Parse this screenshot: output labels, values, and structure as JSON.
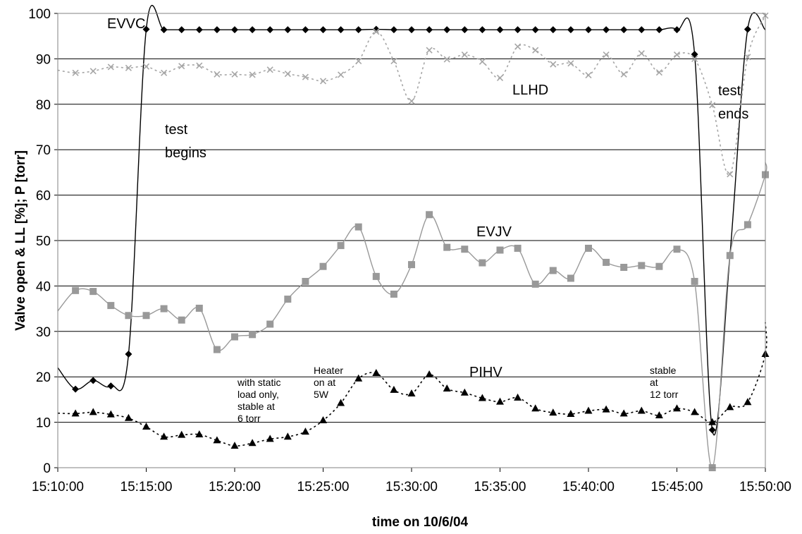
{
  "chart_data": {
    "type": "line",
    "xlabel": "time on 10/6/04",
    "ylabel": "Valve open & LL [%]; P [torr]",
    "ylim": [
      0,
      100
    ],
    "yticks": [
      0,
      10,
      20,
      30,
      40,
      50,
      60,
      70,
      80,
      90,
      100
    ],
    "xticks": [
      "15:10:00",
      "15:15:00",
      "15:20:00",
      "15:25:00",
      "15:30:00",
      "15:35:00",
      "15:40:00",
      "15:45:00",
      "15:50:00"
    ],
    "xlim": [
      "15:10:00",
      "15:50:00"
    ],
    "grid": "horizontal",
    "legend": "none",
    "series": [
      {
        "name": "EVVC",
        "color": "#000000",
        "line_style": "solid",
        "marker": "diamond",
        "x": [
          "15:10:00",
          "15:11:00",
          "15:12:00",
          "15:13:00",
          "15:14:00",
          "15:15:00",
          "15:16:00",
          "15:17:00",
          "15:18:00",
          "15:19:00",
          "15:20:00",
          "15:21:00",
          "15:22:00",
          "15:23:00",
          "15:24:00",
          "15:25:00",
          "15:26:00",
          "15:27:00",
          "15:28:00",
          "15:29:00",
          "15:30:00",
          "15:31:00",
          "15:32:00",
          "15:33:00",
          "15:34:00",
          "15:35:00",
          "15:36:00",
          "15:37:00",
          "15:38:00",
          "15:39:00",
          "15:40:00",
          "15:41:00",
          "15:42:00",
          "15:43:00",
          "15:44:00",
          "15:45:00",
          "15:46:00",
          "15:47:00",
          "15:48:00",
          "15:49:00",
          "15:50:00"
        ],
        "values": [
          22,
          17.3,
          19.2,
          18,
          25,
          96.5,
          96.4,
          96.4,
          96.4,
          96.4,
          96.4,
          96.4,
          96.4,
          96.4,
          96.4,
          96.4,
          96.4,
          96.4,
          96.5,
          96.4,
          96.4,
          96.4,
          96.4,
          96.4,
          96.4,
          96.4,
          96.4,
          96.4,
          96.4,
          96.4,
          96.4,
          96.4,
          96.4,
          96.4,
          96.4,
          96.4,
          91,
          8.3,
          46.8,
          96.5,
          96.4
        ],
        "markers_from": 1,
        "markers_to": 39
      },
      {
        "name": "LLHD",
        "color": "#a6a6a6",
        "line_style": "dotted",
        "marker": "x",
        "x": [
          "15:10:00",
          "15:11:00",
          "15:12:00",
          "15:13:00",
          "15:14:00",
          "15:15:00",
          "15:16:00",
          "15:17:00",
          "15:18:00",
          "15:19:00",
          "15:20:00",
          "15:21:00",
          "15:22:00",
          "15:23:00",
          "15:24:00",
          "15:25:00",
          "15:26:00",
          "15:27:00",
          "15:28:00",
          "15:29:00",
          "15:30:00",
          "15:31:00",
          "15:32:00",
          "15:33:00",
          "15:34:00",
          "15:35:00",
          "15:36:00",
          "15:37:00",
          "15:38:00",
          "15:39:00",
          "15:40:00",
          "15:41:00",
          "15:42:00",
          "15:43:00",
          "15:44:00",
          "15:45:00",
          "15:46:00",
          "15:47:00",
          "15:48:00",
          "15:49:00",
          "15:50:00"
        ],
        "values": [
          87.5,
          86.9,
          87.3,
          88.2,
          88,
          88.3,
          86.9,
          88.4,
          88.5,
          86.6,
          86.6,
          86.5,
          87.6,
          86.7,
          86,
          85.1,
          86.5,
          89.5,
          96,
          89.5,
          80.7,
          91.9,
          89.9,
          90.9,
          89.4,
          85.8,
          92.7,
          91.9,
          88.8,
          89,
          86.4,
          90.9,
          86.6,
          91.2,
          87,
          90.9,
          90,
          79.8,
          64.6,
          90.4,
          99.5
        ],
        "markers_from": 1,
        "markers_to": 40
      },
      {
        "name": "EVJV",
        "color": "#999999",
        "line_style": "solid",
        "marker": "square",
        "x": [
          "15:10:00",
          "15:11:00",
          "15:12:00",
          "15:13:00",
          "15:14:00",
          "15:15:00",
          "15:16:00",
          "15:17:00",
          "15:18:00",
          "15:19:00",
          "15:20:00",
          "15:21:00",
          "15:22:00",
          "15:23:00",
          "15:24:00",
          "15:25:00",
          "15:26:00",
          "15:27:00",
          "15:28:00",
          "15:29:00",
          "15:30:00",
          "15:31:00",
          "15:32:00",
          "15:33:00",
          "15:34:00",
          "15:35:00",
          "15:36:00",
          "15:37:00",
          "15:38:00",
          "15:39:00",
          "15:40:00",
          "15:41:00",
          "15:42:00",
          "15:43:00",
          "15:44:00",
          "15:45:00",
          "15:46:00",
          "15:47:00",
          "15:48:00",
          "15:49:00",
          "15:50:00"
        ],
        "values": [
          34.5,
          39,
          38.8,
          35.7,
          33.5,
          33.5,
          35,
          32.5,
          35.1,
          26,
          28.8,
          29.3,
          31.6,
          37.1,
          41,
          44.3,
          48.9,
          53,
          42.1,
          38.2,
          44.7,
          55.7,
          48.5,
          48.1,
          45.1,
          47.9,
          48.3,
          40.4,
          43.4,
          41.7,
          48.3,
          45.2,
          44.1,
          44.5,
          44.3,
          48.1,
          41,
          0,
          46.7,
          53.5,
          64.5
        ],
        "markers_from": 1,
        "markers_to": 40,
        "extra_points": [
          {
            "x": "15:50:00",
            "value": 67.2
          }
        ]
      },
      {
        "name": "PIHV",
        "color": "#000000",
        "line_style": "dotted",
        "marker": "triangle",
        "x": [
          "15:10:00",
          "15:11:00",
          "15:12:00",
          "15:13:00",
          "15:14:00",
          "15:15:00",
          "15:16:00",
          "15:17:00",
          "15:18:00",
          "15:19:00",
          "15:20:00",
          "15:21:00",
          "15:22:00",
          "15:23:00",
          "15:24:00",
          "15:25:00",
          "15:26:00",
          "15:27:00",
          "15:28:00",
          "15:29:00",
          "15:30:00",
          "15:31:00",
          "15:32:00",
          "15:33:00",
          "15:34:00",
          "15:35:00",
          "15:36:00",
          "15:37:00",
          "15:38:00",
          "15:39:00",
          "15:40:00",
          "15:41:00",
          "15:42:00",
          "15:43:00",
          "15:44:00",
          "15:45:00",
          "15:46:00",
          "15:47:00",
          "15:48:00",
          "15:49:00",
          "15:50:00"
        ],
        "values": [
          12,
          11.9,
          12.2,
          11.7,
          10.9,
          9,
          6.8,
          7.2,
          7.3,
          6,
          4.8,
          5.4,
          6.3,
          6.8,
          7.9,
          10.4,
          14.2,
          19.6,
          20.8,
          17.1,
          16.3,
          20.5,
          17.4,
          16.5,
          15.3,
          14.5,
          15.4,
          13,
          12.1,
          11.8,
          12.5,
          12.8,
          11.9,
          12.5,
          11.5,
          13,
          12.2,
          10,
          13.3,
          14.4,
          25
        ],
        "markers_from": 1,
        "markers_to": 40,
        "extra_points": [
          {
            "x": "15:50:00",
            "value": 32
          }
        ]
      }
    ],
    "annotations": {
      "evvc": "EVVC",
      "llhd": "LLHD",
      "evjv": "EVJV",
      "pihv": "PIHV",
      "test_begins": [
        "test",
        "begins"
      ],
      "test_ends": [
        "test",
        "ends"
      ],
      "static_load": [
        "with static",
        "load only,",
        "stable at",
        "6 torr"
      ],
      "heater": [
        "Heater",
        "on at",
        "5W"
      ],
      "stable_12": [
        "stable",
        "at",
        "12 torr"
      ]
    }
  }
}
